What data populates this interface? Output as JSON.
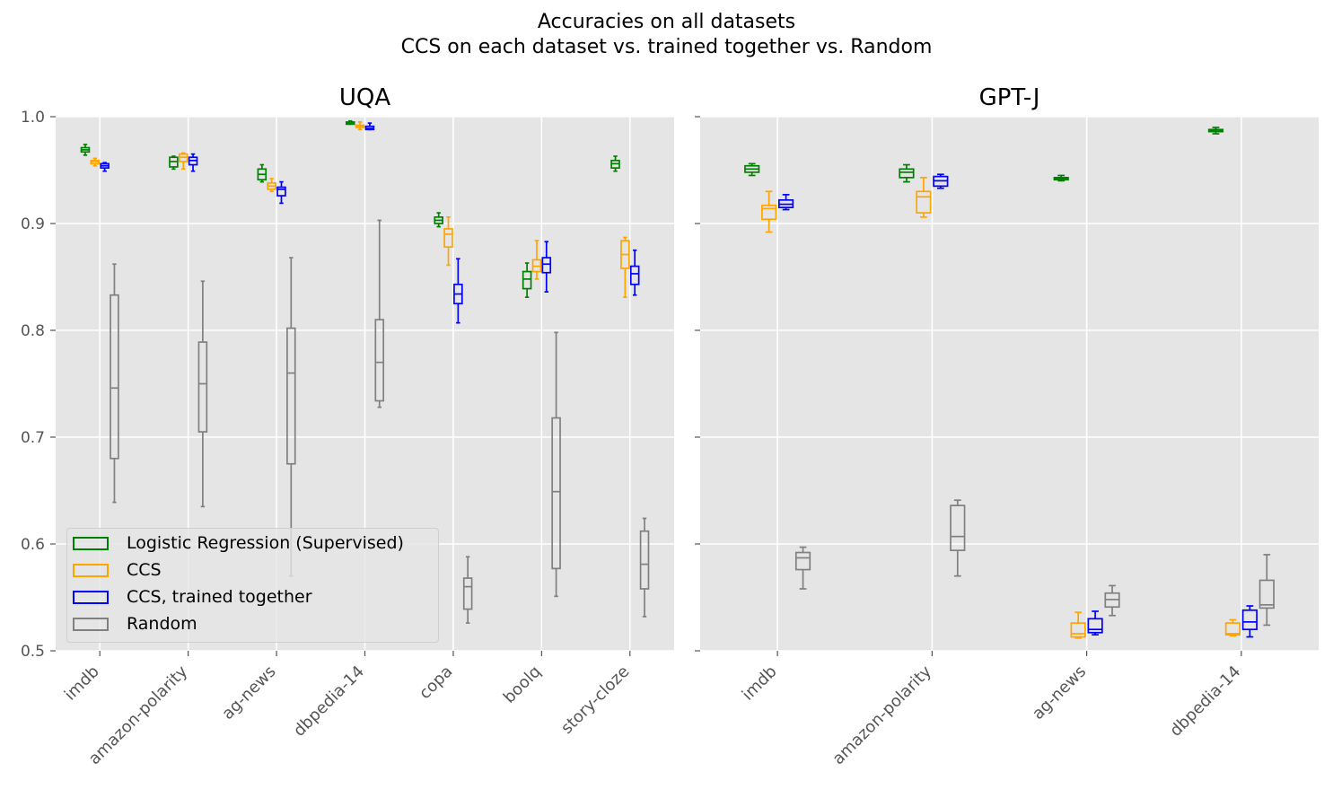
{
  "suptitle": {
    "line1": "Accuracies on all datasets",
    "line2": "CCS on each dataset vs. trained together vs. Random"
  },
  "chart_data": {
    "type": "box",
    "ylim": [
      0.5,
      1.0
    ],
    "yticks": [
      0.5,
      0.6,
      0.7,
      0.8,
      0.9,
      1.0
    ],
    "grid": true,
    "series_styles": [
      {
        "name": "Logistic Regression (Supervised)",
        "color": "#008000"
      },
      {
        "name": "CCS",
        "color": "#FFA500"
      },
      {
        "name": "CCS, trained together",
        "color": "#0000FF"
      },
      {
        "name": "Random",
        "color": "#808080"
      }
    ],
    "legend": {
      "location": "lower-left"
    },
    "panels": [
      {
        "title": "UQA",
        "categories": [
          "imdb",
          "amazon-polarity",
          "ag-news",
          "dbpedia-14",
          "copa",
          "boolq",
          "story-cloze"
        ],
        "boxes": [
          {
            "category": "imdb",
            "series": "Logistic Regression (Supervised)",
            "min": 0.964,
            "q1": 0.967,
            "median": 0.969,
            "q3": 0.971,
            "max": 0.974
          },
          {
            "category": "imdb",
            "series": "CCS",
            "min": 0.954,
            "q1": 0.956,
            "median": 0.958,
            "q3": 0.959,
            "max": 0.961
          },
          {
            "category": "imdb",
            "series": "CCS, trained together",
            "min": 0.949,
            "q1": 0.952,
            "median": 0.954,
            "q3": 0.956,
            "max": 0.957
          },
          {
            "category": "imdb",
            "series": "Random",
            "min": 0.639,
            "q1": 0.68,
            "median": 0.746,
            "q3": 0.833,
            "max": 0.862
          },
          {
            "category": "amazon-polarity",
            "series": "Logistic Regression (Supervised)",
            "min": 0.951,
            "q1": 0.953,
            "median": 0.958,
            "q3": 0.962,
            "max": 0.963
          },
          {
            "category": "amazon-polarity",
            "series": "CCS",
            "min": 0.951,
            "q1": 0.958,
            "median": 0.962,
            "q3": 0.965,
            "max": 0.966
          },
          {
            "category": "amazon-polarity",
            "series": "CCS, trained together",
            "min": 0.949,
            "q1": 0.955,
            "median": 0.959,
            "q3": 0.962,
            "max": 0.965
          },
          {
            "category": "amazon-polarity",
            "series": "Random",
            "min": 0.635,
            "q1": 0.705,
            "median": 0.75,
            "q3": 0.789,
            "max": 0.846
          },
          {
            "category": "ag-news",
            "series": "Logistic Regression (Supervised)",
            "min": 0.939,
            "q1": 0.941,
            "median": 0.946,
            "q3": 0.951,
            "max": 0.955
          },
          {
            "category": "ag-news",
            "series": "CCS",
            "min": 0.93,
            "q1": 0.932,
            "median": 0.935,
            "q3": 0.938,
            "max": 0.942
          },
          {
            "category": "ag-news",
            "series": "CCS, trained together",
            "min": 0.919,
            "q1": 0.926,
            "median": 0.932,
            "q3": 0.934,
            "max": 0.939
          },
          {
            "category": "ag-news",
            "series": "Random",
            "min": 0.57,
            "q1": 0.675,
            "median": 0.76,
            "q3": 0.802,
            "max": 0.868
          },
          {
            "category": "dbpedia-14",
            "series": "Logistic Regression (Supervised)",
            "min": 0.993,
            "q1": 0.993,
            "median": 0.994,
            "q3": 0.995,
            "max": 0.996
          },
          {
            "category": "dbpedia-14",
            "series": "CCS",
            "min": 0.988,
            "q1": 0.99,
            "median": 0.991,
            "q3": 0.992,
            "max": 0.995
          },
          {
            "category": "dbpedia-14",
            "series": "CCS, trained together",
            "min": 0.988,
            "q1": 0.988,
            "median": 0.989,
            "q3": 0.991,
            "max": 0.994
          },
          {
            "category": "dbpedia-14",
            "series": "Random",
            "min": 0.728,
            "q1": 0.734,
            "median": 0.77,
            "q3": 0.81,
            "max": 0.903
          },
          {
            "category": "copa",
            "series": "Logistic Regression (Supervised)",
            "min": 0.897,
            "q1": 0.9,
            "median": 0.903,
            "q3": 0.906,
            "max": 0.91
          },
          {
            "category": "copa",
            "series": "CCS",
            "min": 0.861,
            "q1": 0.878,
            "median": 0.89,
            "q3": 0.895,
            "max": 0.906
          },
          {
            "category": "copa",
            "series": "CCS, trained together",
            "min": 0.807,
            "q1": 0.825,
            "median": 0.834,
            "q3": 0.843,
            "max": 0.867
          },
          {
            "category": "copa",
            "series": "Random",
            "min": 0.526,
            "q1": 0.539,
            "median": 0.56,
            "q3": 0.568,
            "max": 0.588
          },
          {
            "category": "boolq",
            "series": "Logistic Regression (Supervised)",
            "min": 0.831,
            "q1": 0.839,
            "median": 0.848,
            "q3": 0.855,
            "max": 0.863
          },
          {
            "category": "boolq",
            "series": "CCS",
            "min": 0.848,
            "q1": 0.855,
            "median": 0.86,
            "q3": 0.866,
            "max": 0.884
          },
          {
            "category": "boolq",
            "series": "CCS, trained together",
            "min": 0.836,
            "q1": 0.854,
            "median": 0.862,
            "q3": 0.868,
            "max": 0.883
          },
          {
            "category": "boolq",
            "series": "Random",
            "min": 0.551,
            "q1": 0.577,
            "median": 0.649,
            "q3": 0.718,
            "max": 0.798
          },
          {
            "category": "story-cloze",
            "series": "Logistic Regression (Supervised)",
            "min": 0.949,
            "q1": 0.952,
            "median": 0.956,
            "q3": 0.959,
            "max": 0.963
          },
          {
            "category": "story-cloze",
            "series": "CCS",
            "min": 0.831,
            "q1": 0.858,
            "median": 0.871,
            "q3": 0.884,
            "max": 0.887
          },
          {
            "category": "story-cloze",
            "series": "CCS, trained together",
            "min": 0.833,
            "q1": 0.843,
            "median": 0.853,
            "q3": 0.86,
            "max": 0.875
          },
          {
            "category": "story-cloze",
            "series": "Random",
            "min": 0.532,
            "q1": 0.558,
            "median": 0.581,
            "q3": 0.612,
            "max": 0.624
          }
        ]
      },
      {
        "title": "GPT-J",
        "categories": [
          "imdb",
          "amazon-polarity",
          "ag-news",
          "dbpedia-14"
        ],
        "boxes": [
          {
            "category": "imdb",
            "series": "Logistic Regression (Supervised)",
            "min": 0.945,
            "q1": 0.948,
            "median": 0.951,
            "q3": 0.954,
            "max": 0.956
          },
          {
            "category": "imdb",
            "series": "CCS",
            "min": 0.892,
            "q1": 0.904,
            "median": 0.914,
            "q3": 0.917,
            "max": 0.93
          },
          {
            "category": "imdb",
            "series": "CCS, trained together",
            "min": 0.913,
            "q1": 0.915,
            "median": 0.918,
            "q3": 0.922,
            "max": 0.927
          },
          {
            "category": "imdb",
            "series": "Random",
            "min": 0.558,
            "q1": 0.576,
            "median": 0.587,
            "q3": 0.592,
            "max": 0.597
          },
          {
            "category": "amazon-polarity",
            "series": "Logistic Regression (Supervised)",
            "min": 0.939,
            "q1": 0.943,
            "median": 0.948,
            "q3": 0.951,
            "max": 0.955
          },
          {
            "category": "amazon-polarity",
            "series": "CCS",
            "min": 0.906,
            "q1": 0.91,
            "median": 0.925,
            "q3": 0.93,
            "max": 0.943
          },
          {
            "category": "amazon-polarity",
            "series": "CCS, trained together",
            "min": 0.933,
            "q1": 0.935,
            "median": 0.94,
            "q3": 0.944,
            "max": 0.946
          },
          {
            "category": "amazon-polarity",
            "series": "Random",
            "min": 0.57,
            "q1": 0.594,
            "median": 0.607,
            "q3": 0.636,
            "max": 0.641
          },
          {
            "category": "ag-news",
            "series": "Logistic Regression (Supervised)",
            "min": 0.94,
            "q1": 0.941,
            "median": 0.942,
            "q3": 0.943,
            "max": 0.945
          },
          {
            "category": "ag-news",
            "series": "CCS",
            "min": 0.512,
            "q1": 0.513,
            "median": 0.516,
            "q3": 0.526,
            "max": 0.536
          },
          {
            "category": "ag-news",
            "series": "CCS, trained together",
            "min": 0.515,
            "q1": 0.517,
            "median": 0.52,
            "q3": 0.53,
            "max": 0.537
          },
          {
            "category": "ag-news",
            "series": "Random",
            "min": 0.533,
            "q1": 0.541,
            "median": 0.548,
            "q3": 0.554,
            "max": 0.561
          },
          {
            "category": "dbpedia-14",
            "series": "Logistic Regression (Supervised)",
            "min": 0.984,
            "q1": 0.986,
            "median": 0.987,
            "q3": 0.988,
            "max": 0.99
          },
          {
            "category": "dbpedia-14",
            "series": "CCS",
            "min": 0.514,
            "q1": 0.515,
            "median": 0.516,
            "q3": 0.526,
            "max": 0.529
          },
          {
            "category": "dbpedia-14",
            "series": "CCS, trained together",
            "min": 0.513,
            "q1": 0.52,
            "median": 0.527,
            "q3": 0.538,
            "max": 0.542
          },
          {
            "category": "dbpedia-14",
            "series": "Random",
            "min": 0.524,
            "q1": 0.54,
            "median": 0.543,
            "q3": 0.566,
            "max": 0.59
          }
        ]
      }
    ]
  }
}
